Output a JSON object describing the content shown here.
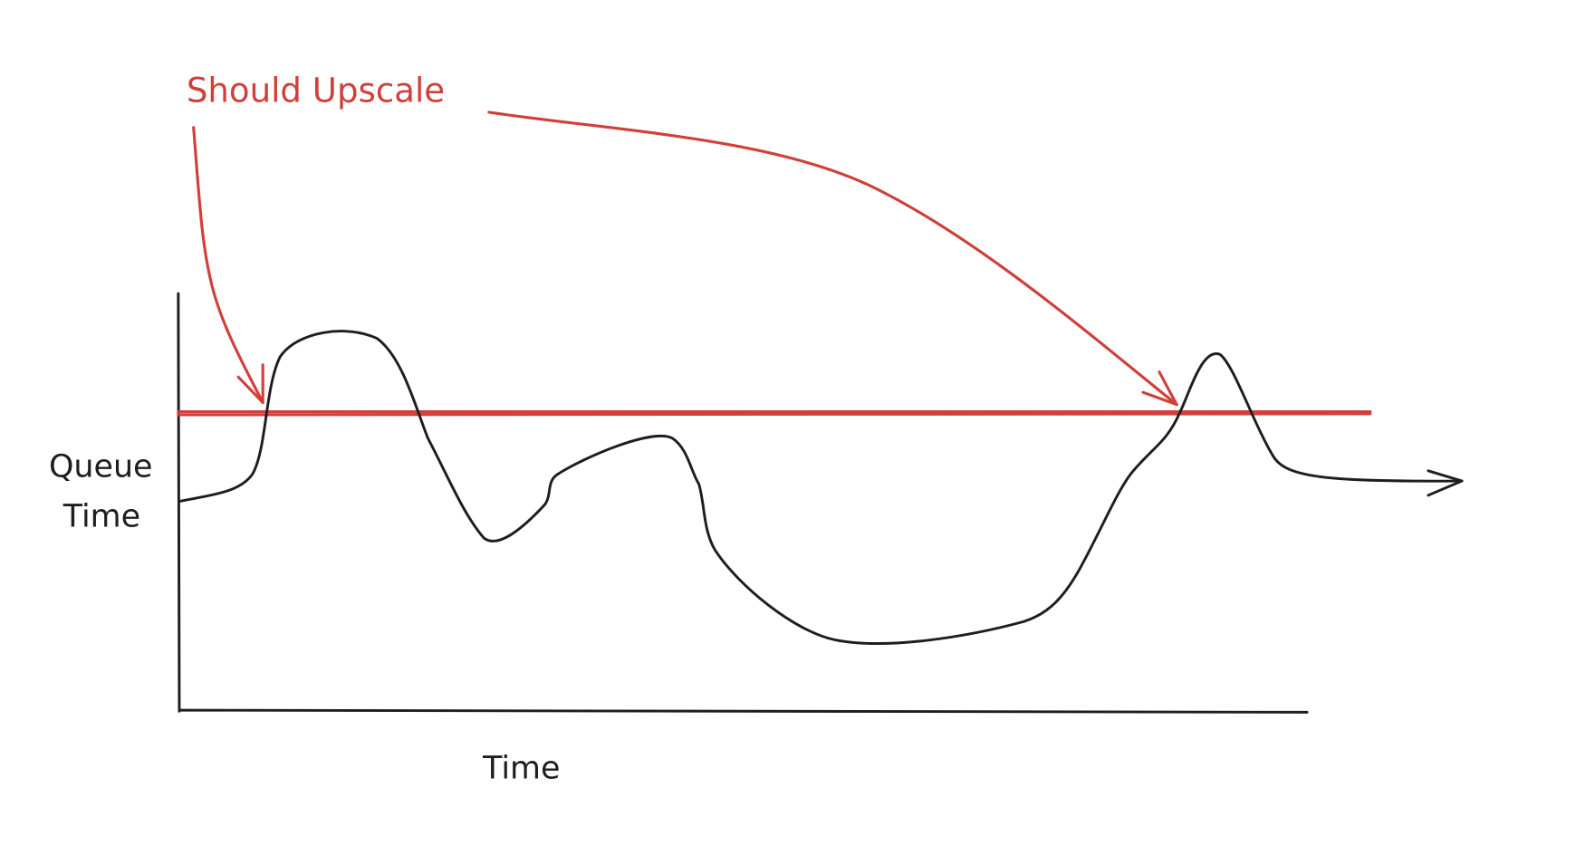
{
  "annotation": {
    "text": "Should Upscale"
  },
  "y_axis": {
    "label_line1": "Queue",
    "label_line2": "Time"
  },
  "x_axis": {
    "label": "Time"
  },
  "colors": {
    "ink": "#1e1e1e",
    "accent": "#d0403a"
  }
}
